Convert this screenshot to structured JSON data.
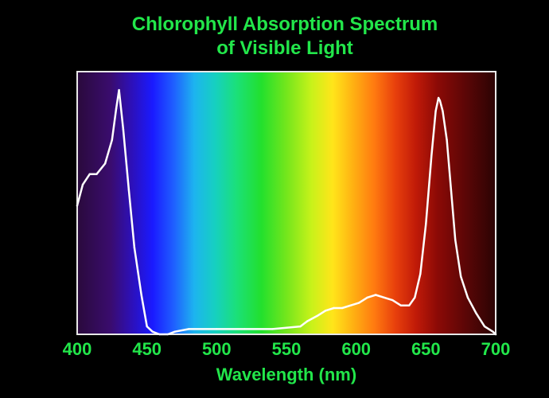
{
  "chart_data": {
    "type": "line",
    "title_lines": [
      "Chlorophyll Absorption Spectrum",
      "of Visible Light"
    ],
    "xlabel": "Wavelength (nm)",
    "ylabel": "",
    "xlim": [
      400,
      700
    ],
    "ylim": [
      0,
      1
    ],
    "x_ticks": [
      400,
      450,
      500,
      550,
      600,
      650,
      700
    ],
    "grid": false,
    "background": "visible-light-spectrum-gradient",
    "series": [
      {
        "color": "#ffffff",
        "x": [
          400,
          404,
          409,
          414,
          420,
          425,
          428,
          430,
          433,
          437,
          441,
          446,
          450,
          454,
          459,
          465,
          470,
          480,
          500,
          520,
          540,
          560,
          565,
          572,
          578,
          584,
          590,
          596,
          602,
          608,
          614,
          620,
          626,
          632,
          638,
          642,
          646,
          650,
          654,
          657,
          659,
          660,
          662,
          665,
          668,
          671,
          675,
          680,
          686,
          692,
          698,
          700
        ],
        "y": [
          0.49,
          0.57,
          0.61,
          0.61,
          0.65,
          0.74,
          0.86,
          0.93,
          0.78,
          0.55,
          0.33,
          0.15,
          0.03,
          0.01,
          0.0,
          0.0,
          0.01,
          0.02,
          0.02,
          0.02,
          0.02,
          0.03,
          0.05,
          0.07,
          0.09,
          0.1,
          0.1,
          0.11,
          0.12,
          0.14,
          0.15,
          0.14,
          0.13,
          0.11,
          0.11,
          0.14,
          0.23,
          0.42,
          0.68,
          0.85,
          0.9,
          0.89,
          0.85,
          0.74,
          0.55,
          0.36,
          0.22,
          0.14,
          0.08,
          0.03,
          0.01,
          0.0
        ]
      }
    ]
  }
}
